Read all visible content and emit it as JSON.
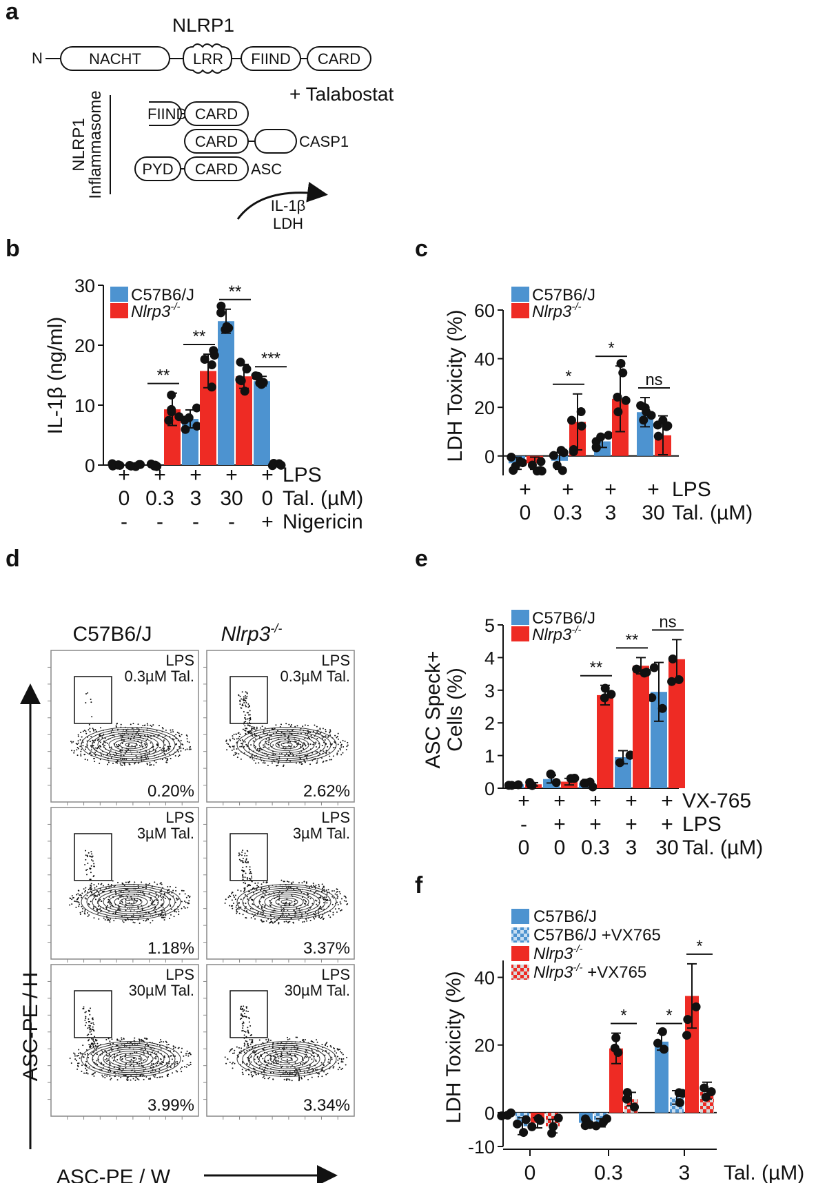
{
  "colors": {
    "blue": "#4d93d0",
    "red": "#ee2b24",
    "black": "#111111"
  },
  "panel_a": {
    "letter": "a",
    "title": "NLRP1",
    "n_term": "N",
    "domains": [
      "NACHT",
      "LRR",
      "FIIND",
      "CARD"
    ],
    "treatment": "+ Talabostat",
    "side_label_1": "NLRP1",
    "side_label_2": "Inflammasome",
    "row1": [
      "FIIND",
      "CARD"
    ],
    "row2": [
      "CARD",
      "CASP1"
    ],
    "row3": [
      "PYD",
      "CARD",
      "ASC"
    ],
    "outputs": [
      "IL-1β",
      "LDH"
    ]
  },
  "panel_d": {
    "letter": "d",
    "col_titles": [
      "C57B6/J",
      "Nlrp3",
      "-/-"
    ],
    "y_axis": "ASC-PE / H",
    "x_axis": "ASC-PE / W",
    "plots": [
      {
        "line1": "LPS",
        "line2": "0.3µM Tal.",
        "pct": "0.20%"
      },
      {
        "line1": "LPS",
        "line2": "0.3µM Tal.",
        "pct": "2.62%"
      },
      {
        "line1": "LPS",
        "line2": "3µM Tal.",
        "pct": "1.18%"
      },
      {
        "line1": "LPS",
        "line2": "3µM Tal.",
        "pct": "3.37%"
      },
      {
        "line1": "LPS",
        "line2": "30µM Tal.",
        "pct": "3.99%"
      },
      {
        "line1": "LPS",
        "line2": "30µM Tal.",
        "pct": "3.34%"
      }
    ]
  },
  "chart_data": [
    {
      "id": "b",
      "type": "bar",
      "letter": "b",
      "ylabel": "IL-1β (ng/ml)",
      "ylim": [
        0,
        30
      ],
      "yticks": [
        0,
        10,
        20,
        30
      ],
      "legend": [
        "C57B6/J",
        "Nlrp3",
        "-/-"
      ],
      "series": [
        {
          "name": "C57B6/J",
          "values": [
            0,
            0,
            7.7,
            24.0,
            14.0
          ],
          "errors": [
            0,
            0,
            1.5,
            2.0,
            0.8
          ]
        },
        {
          "name": "Nlrp3-/-",
          "values": [
            0,
            9.3,
            15.7,
            14.8,
            0
          ],
          "errors": [
            0,
            2.7,
            2.8,
            2.0,
            0
          ]
        }
      ],
      "significance": [
        "",
        "**",
        "**",
        "**",
        "***"
      ],
      "conditions": [
        {
          "label": "LPS",
          "values": [
            "+",
            "+",
            "+",
            "+",
            "+"
          ]
        },
        {
          "label": "Tal. (µM)",
          "values": [
            "0",
            "0.3",
            "3",
            "30",
            "0"
          ]
        },
        {
          "label": "Nigericin",
          "values": [
            "-",
            "-",
            "-",
            "-",
            "+"
          ]
        }
      ]
    },
    {
      "id": "c",
      "type": "bar",
      "letter": "c",
      "ylabel": "LDH Toxicity (%)",
      "ylim": [
        -8,
        60
      ],
      "yticks": [
        0,
        20,
        40,
        60
      ],
      "legend": [
        "C57B6/J",
        "Nlrp3",
        "-/-"
      ],
      "series": [
        {
          "name": "C57B6/J",
          "values": [
            -3,
            -2,
            6,
            18
          ],
          "errors": [
            2.5,
            3.5,
            2.5,
            6
          ]
        },
        {
          "name": "Nlrp3-/-",
          "values": [
            -3,
            14,
            23.5,
            8.5
          ],
          "errors": [
            2.5,
            11.5,
            13.5,
            8
          ]
        }
      ],
      "significance": [
        "",
        "*",
        "*",
        "ns"
      ],
      "conditions": [
        {
          "label": "LPS",
          "values": [
            "+",
            "+",
            "+",
            "+"
          ]
        },
        {
          "label": "Tal. (µM)",
          "values": [
            "0",
            "0.3",
            "3",
            "30"
          ]
        }
      ]
    },
    {
      "id": "e",
      "type": "bar",
      "letter": "e",
      "ylabel": "ASC Speck+",
      "ylabel2": "Cells (%)",
      "ylim": [
        0,
        5
      ],
      "yticks": [
        0,
        1,
        2,
        3,
        4,
        5
      ],
      "legend": [
        "C57B6/J",
        "Nlrp3",
        "-/-"
      ],
      "series": [
        {
          "name": "C57B6/J",
          "values": [
            0.12,
            0.28,
            0.15,
            0.95,
            2.95
          ],
          "errors": [
            0.05,
            0.12,
            0.12,
            0.2,
            0.9
          ]
        },
        {
          "name": "Nlrp3-/-",
          "values": [
            0.12,
            0.2,
            2.85,
            3.75,
            3.95
          ],
          "errors": [
            0.05,
            0.1,
            0.3,
            0.25,
            0.6
          ]
        }
      ],
      "significance": [
        "",
        "",
        "**",
        "**",
        "ns"
      ],
      "conditions": [
        {
          "label": "VX-765",
          "values": [
            "+",
            "+",
            "+",
            "+",
            "+"
          ]
        },
        {
          "label": "LPS",
          "values": [
            "-",
            "+",
            "+",
            "+",
            "+"
          ]
        },
        {
          "label": "Tal. (µM)",
          "values": [
            "0",
            "0",
            "0.3",
            "3",
            "30"
          ]
        }
      ]
    },
    {
      "id": "f",
      "type": "bar",
      "letter": "f",
      "ylabel": "LDH Toxicity (%)",
      "ylim": [
        -10,
        45
      ],
      "yticks": [
        -10,
        0,
        20,
        40
      ],
      "legend": [
        "C57B6/J",
        "C57B6/J +VX765",
        "Nlrp3",
        "-/-",
        "+VX765"
      ],
      "categories": [
        "0",
        "0.3",
        "3"
      ],
      "xlabel": "Tal. (µM)",
      "series": [
        {
          "name": "C57B6/J",
          "values": [
            -0.5,
            -3,
            21
          ],
          "errors": [
            0.5,
            1,
            2.5
          ]
        },
        {
          "name": "C57B6/J +VX765",
          "values": [
            -4,
            -3,
            4.5
          ],
          "errors": [
            2.5,
            1.2,
            2
          ]
        },
        {
          "name": "Nlrp3-/-",
          "values": [
            -3,
            19,
            34.5
          ],
          "errors": [
            1.5,
            4.5,
            9.5
          ]
        },
        {
          "name": "Nlrp3-/- +VX765",
          "values": [
            -4,
            4,
            6.5
          ],
          "errors": [
            2,
            2,
            2.5
          ]
        }
      ],
      "significance": [
        {
          "text": "*",
          "between": [
            2,
            3
          ],
          "group": 1
        },
        {
          "text": "*",
          "between": [
            0,
            1
          ],
          "group": 2
        },
        {
          "text": "*",
          "between": [
            2,
            3
          ],
          "group": 2
        }
      ]
    }
  ]
}
